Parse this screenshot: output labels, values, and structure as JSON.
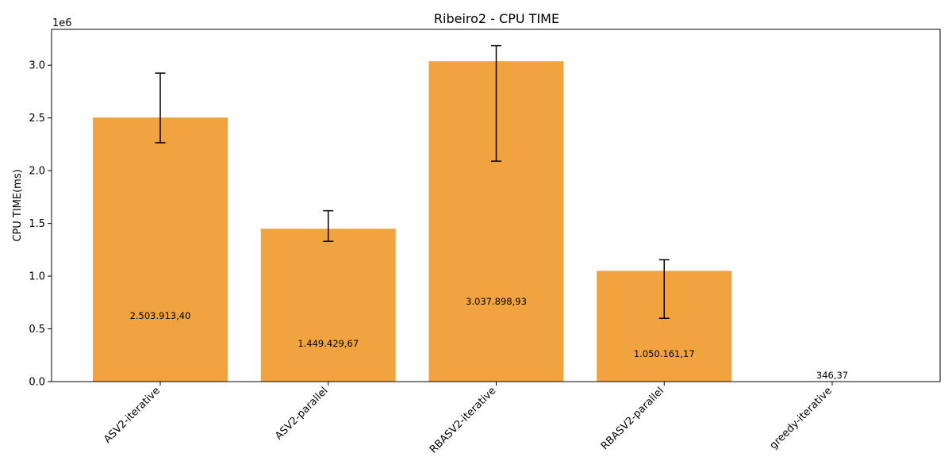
{
  "chart_data": {
    "type": "bar",
    "title": "Ribeiro2 - CPU TIME",
    "xlabel": "",
    "ylabel": "CPU TIME(ms)",
    "y_offset_label": "1e6",
    "ylim": [
      0,
      3340000
    ],
    "yticks": [
      0,
      500000,
      1000000,
      1500000,
      2000000,
      2500000,
      3000000
    ],
    "ytick_labels": [
      "0.0",
      "0.5",
      "1.0",
      "1.5",
      "2.0",
      "2.5",
      "3.0"
    ],
    "categories": [
      "ASV2-iterative",
      "ASV2-parallel",
      "RBASV2-iterative",
      "RBASV2-parallel",
      "greedy-iterative"
    ],
    "values": [
      2503913.4,
      1449429.67,
      3037898.93,
      1050161.17,
      346.37
    ],
    "value_labels": [
      "2.503.913,40",
      "1.449.429,67",
      "3.037.898,93",
      "1.050.161,17",
      "346,37"
    ],
    "error_low": [
      2265000,
      1330000,
      2090000,
      600000,
      null
    ],
    "error_high": [
      2925000,
      1620000,
      3185000,
      1155000,
      null
    ],
    "bar_color": "#f0a33f",
    "grid": false
  }
}
